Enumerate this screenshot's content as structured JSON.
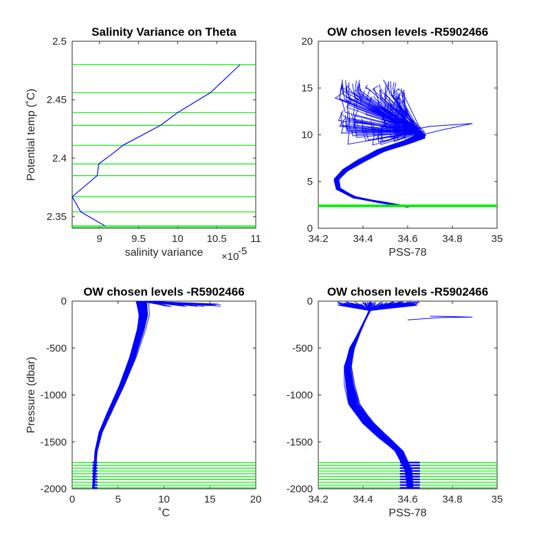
{
  "colors": {
    "profile": "#0000ff",
    "level": "#00ee00",
    "axis": "#262626"
  },
  "chart_data": [
    {
      "type": "line",
      "title": "Salinity Variance on Theta",
      "xlabel": "salinity variance",
      "xexponent": "×10",
      "xexponent_power": "-5",
      "ylabel": "Potential temp (˚C)",
      "xlim": [
        8.65,
        11
      ],
      "ylim": [
        2.34,
        2.5
      ],
      "xticks": [
        9,
        9.5,
        10,
        10.5,
        11
      ],
      "xtick_labels": [
        "9",
        "9.5",
        "10",
        "10.5",
        "11"
      ],
      "yticks": [
        2.35,
        2.4,
        2.45,
        2.5
      ],
      "ytick_labels": [
        "2.35",
        "2.4",
        "2.45",
        "2.5"
      ],
      "series": [
        {
          "x": [
            10.8,
            10.42,
            10.0,
            9.78,
            9.3,
            9.17,
            8.99,
            8.97,
            8.65,
            8.76,
            9.07
          ],
          "y": [
            2.48,
            2.456,
            2.439,
            2.428,
            2.411,
            2.404,
            2.395,
            2.385,
            2.367,
            2.354,
            2.342
          ]
        }
      ],
      "levels": [
        2.48,
        2.456,
        2.439,
        2.428,
        2.411,
        2.395,
        2.385,
        2.367,
        2.354,
        2.342,
        2.341
      ]
    },
    {
      "type": "line",
      "title": "OW chosen levels -R5902466",
      "xlabel": "PSS-78",
      "xlim": [
        34.2,
        35
      ],
      "ylim": [
        0,
        20
      ],
      "xticks": [
        34.2,
        34.4,
        34.6,
        34.8,
        35
      ],
      "xtick_labels": [
        "34.2",
        "34.4",
        "34.6",
        "34.8",
        "35"
      ],
      "yticks": [
        0,
        5,
        10,
        15,
        20
      ],
      "ytick_labels": [
        "0",
        "5",
        "10",
        "15",
        "20"
      ],
      "profile_shape": {
        "s": [
          34.6,
          34.48,
          34.36,
          34.29,
          34.28,
          34.32,
          34.39,
          34.48,
          34.57,
          34.62,
          34.66,
          34.65
        ],
        "t": [
          2.3,
          2.8,
          3.3,
          4.2,
          5.2,
          6.2,
          7.2,
          8.3,
          9.0,
          9.4,
          9.8,
          10.3
        ]
      },
      "levels": [
        2.32,
        2.36,
        2.4,
        2.44,
        2.48
      ]
    },
    {
      "type": "line",
      "title": "OW chosen levels -R5902466",
      "xlabel": "˚C",
      "ylabel": "Pressure (dbar)",
      "xlim": [
        0,
        20
      ],
      "ylim": [
        -2000,
        0
      ],
      "xticks": [
        0,
        5,
        10,
        15,
        20
      ],
      "xtick_labels": [
        "0",
        "5",
        "10",
        "15",
        "20"
      ],
      "yticks": [
        0,
        -500,
        -1000,
        -1500,
        -2000
      ],
      "ytick_labels": [
        "0",
        "-500",
        "-1000",
        "-1500",
        "-2000"
      ],
      "profile_shape": {
        "t": [
          2.3,
          2.45,
          2.6,
          3.1,
          4.0,
          5.4,
          6.6,
          7.5,
          7.8,
          7.6
        ],
        "p": [
          -2000,
          -1800,
          -1600,
          -1400,
          -1200,
          -900,
          -600,
          -300,
          -150,
          0
        ]
      },
      "levels": [
        -1720,
        -1750,
        -1780,
        -1810,
        -1840,
        -1870,
        -1900,
        -1930,
        -1960,
        -1990
      ]
    },
    {
      "type": "line",
      "title": "OW chosen levels -R5902466",
      "xlabel": "PSS-78",
      "xlim": [
        34.2,
        35
      ],
      "ylim": [
        -2000,
        0
      ],
      "xticks": [
        34.2,
        34.4,
        34.6,
        34.8,
        35
      ],
      "xtick_labels": [
        "34.2",
        "34.4",
        "34.6",
        "34.8",
        "35"
      ],
      "yticks": [
        0,
        -500,
        -1000,
        -1500,
        -2000
      ],
      "ytick_labels": [
        "0",
        "-500",
        "-1000",
        "-1500",
        "-2000"
      ],
      "profile_shape": {
        "s": [
          34.61,
          34.6,
          34.56,
          34.49,
          34.42,
          34.36,
          34.34,
          34.33,
          34.35,
          34.39,
          34.43
        ],
        "p": [
          -2000,
          -1800,
          -1600,
          -1450,
          -1300,
          -1100,
          -900,
          -700,
          -500,
          -300,
          -100
        ]
      },
      "levels": [
        -1720,
        -1750,
        -1780,
        -1810,
        -1840,
        -1870,
        -1900,
        -1930,
        -1960,
        -1990
      ]
    }
  ]
}
